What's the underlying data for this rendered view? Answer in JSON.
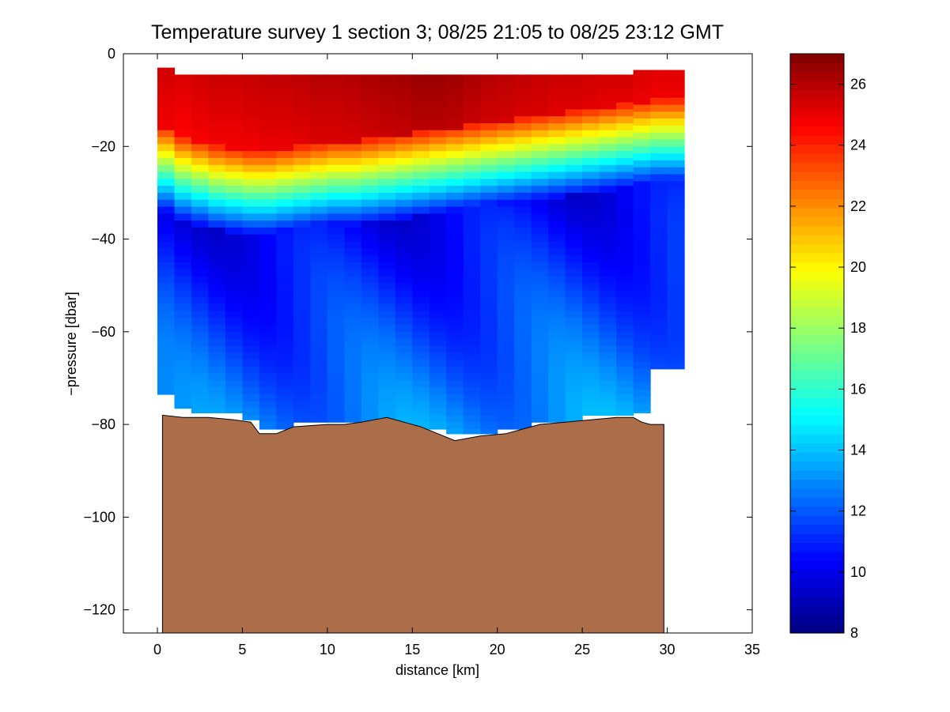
{
  "chart_data": {
    "type": "heatmap",
    "title": "Temperature survey 1 section 3; 08/25 21:05 to 08/25 23:12 GMT",
    "xlabel": "distance [km]",
    "ylabel": "−pressure [dbar]",
    "xlim": [
      -2,
      35
    ],
    "ylim": [
      -125,
      0
    ],
    "x_ticks": [
      0,
      5,
      10,
      15,
      20,
      25,
      30,
      35
    ],
    "y_ticks": [
      0,
      -20,
      -40,
      -60,
      -80,
      -100,
      -120
    ],
    "y_tick_labels": [
      "0",
      "−20",
      "−40",
      "−60",
      "−80",
      "−100",
      "−120"
    ],
    "colormap": "jet",
    "colorbar": {
      "range": [
        8,
        27
      ],
      "ticks": [
        8,
        10,
        12,
        14,
        16,
        18,
        20,
        22,
        24,
        26
      ],
      "position": "right"
    },
    "colors": {
      "bottom_fill": "#ac6e4a",
      "bottom_outline": "#000000"
    },
    "data_x": [
      0,
      1,
      2,
      3,
      4,
      5,
      6,
      7,
      8,
      9,
      10,
      11,
      12,
      13,
      14,
      15,
      16,
      17,
      18,
      19,
      20,
      21,
      22,
      23,
      24,
      25,
      26,
      27,
      28,
      29,
      30
    ],
    "data_depth_top": [
      -3,
      -4.5,
      -4.5,
      -4.5,
      -4.5,
      -4.5,
      -4.5,
      -4.5,
      -4.5,
      -4.5,
      -4.5,
      -4.5,
      -4.5,
      -4.5,
      -4.5,
      -4.5,
      -4.5,
      -4.5,
      -4.5,
      -4.5,
      -4.5,
      -4.5,
      -4.5,
      -4.5,
      -4.5,
      -4.5,
      -4.5,
      -4.5,
      -3.5,
      -3.5,
      -3.5
    ],
    "data_depth_bottom": [
      -73.5,
      -76.5,
      -77.5,
      -77.5,
      -77.5,
      -79,
      -81,
      -81,
      -79.5,
      -79.5,
      -79.5,
      -79.5,
      -79.5,
      -79.5,
      -80,
      -81,
      -81,
      -82,
      -82,
      -82,
      -81,
      -81,
      -79.5,
      -79.5,
      -79.5,
      -78,
      -78,
      -78,
      -77.5,
      -68,
      -68
    ],
    "mixed_layer_base": [
      -24,
      -26,
      -27,
      -28,
      -28.5,
      -29,
      -29,
      -28.5,
      -28,
      -27.5,
      -27,
      -27,
      -26.5,
      -26,
      -25.5,
      -25,
      -24.5,
      -24,
      -23.5,
      -23,
      -22.5,
      -22,
      -21.5,
      -21,
      -20.5,
      -20,
      -19.5,
      -19,
      -18.5,
      -18,
      -18
    ],
    "surface_temp": [
      25.5,
      25.3,
      25.5,
      25.6,
      25.6,
      25.7,
      25.8,
      25.8,
      25.9,
      26.0,
      26.0,
      26.1,
      26.2,
      26.3,
      26.4,
      26.5,
      26.5,
      26.4,
      26.2,
      26.0,
      25.9,
      25.8,
      25.7,
      25.6,
      25.6,
      25.5,
      25.4,
      25.4,
      25.3,
      25.2,
      25.2
    ],
    "bottom_depth": [
      [
        0.3,
        -78
      ],
      [
        1.5,
        -78.5
      ],
      [
        3,
        -78.5
      ],
      [
        4.5,
        -79
      ],
      [
        5.5,
        -79.5
      ],
      [
        6,
        -82
      ],
      [
        7,
        -82
      ],
      [
        8,
        -80.5
      ],
      [
        10,
        -80
      ],
      [
        11,
        -80
      ],
      [
        12,
        -79.5
      ],
      [
        13.5,
        -78.5
      ],
      [
        14.5,
        -79.5
      ],
      [
        15.5,
        -80.5
      ],
      [
        16.5,
        -82
      ],
      [
        17.5,
        -83.5
      ],
      [
        19,
        -82.5
      ],
      [
        20.5,
        -82
      ],
      [
        21.5,
        -81
      ],
      [
        22.5,
        -80
      ],
      [
        24,
        -79.5
      ],
      [
        25.5,
        -79
      ],
      [
        27,
        -78.5
      ],
      [
        28,
        -78.5
      ],
      [
        28.5,
        -79.5
      ],
      [
        29,
        -80
      ],
      [
        29.8,
        -80
      ]
    ]
  }
}
